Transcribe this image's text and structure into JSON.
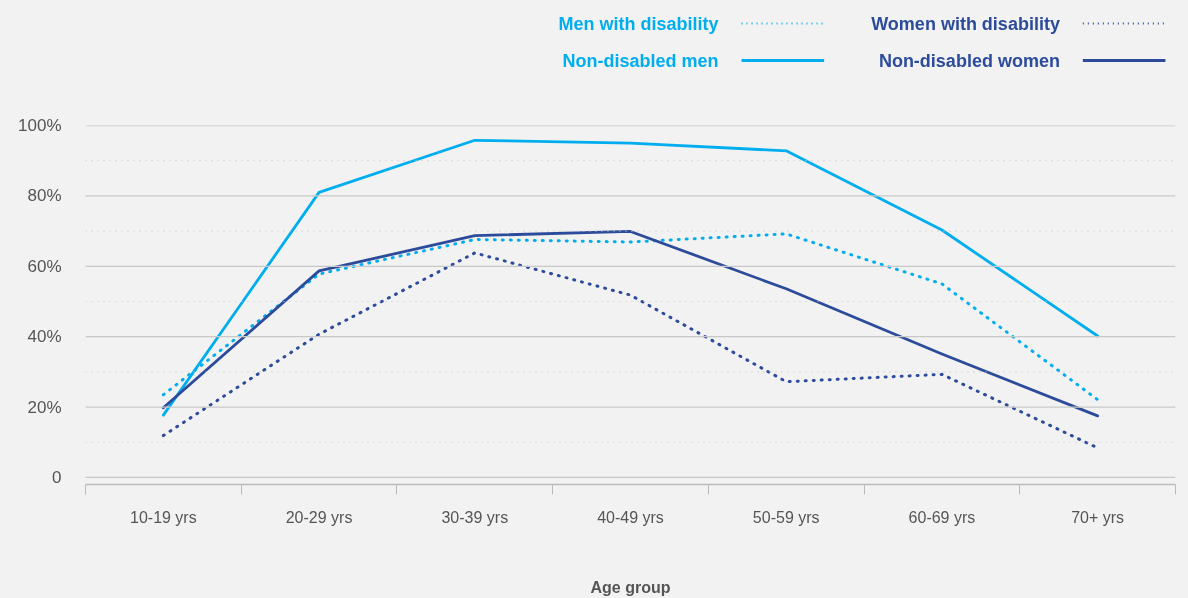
{
  "chart_data": {
    "type": "line",
    "xlabel": "Age group",
    "categories": [
      "10-19 yrs",
      "20-29 yrs",
      "30-39 yrs",
      "40-49 yrs",
      "50-59 yrs",
      "60-69 yrs",
      "70+ yrs"
    ],
    "ylim": [
      -2,
      100
    ],
    "yticks": [
      {
        "value": 0,
        "label": "0"
      },
      {
        "value": 10,
        "label": null
      },
      {
        "value": 20,
        "label": "20%"
      },
      {
        "value": 30,
        "label": null
      },
      {
        "value": 40,
        "label": "40%"
      },
      {
        "value": 50,
        "label": null
      },
      {
        "value": 60,
        "label": "60%"
      },
      {
        "value": 70,
        "label": null
      },
      {
        "value": 80,
        "label": "80%"
      },
      {
        "value": 90,
        "label": null
      },
      {
        "value": 100,
        "label": "100%"
      }
    ],
    "grid": "y",
    "legend": "top",
    "marker": "none",
    "series": [
      {
        "name": "Men with disability",
        "color": "#00aeef",
        "line_style": "dotted",
        "values": [
          23.5,
          57.8,
          67.6,
          66.9,
          69.2,
          55,
          22.1
        ]
      },
      {
        "name": "Women with disability",
        "color": "#2c4b9b",
        "line_style": "dotted",
        "values": [
          11.9,
          40.7,
          63.8,
          51.8,
          27.2,
          29.3,
          8.4
        ]
      },
      {
        "name": "Non-disabled men",
        "color": "#00aeef",
        "line_style": "solid",
        "values": [
          17.7,
          81,
          95.8,
          95,
          92.8,
          70.3,
          40.2
        ]
      },
      {
        "name": "Non-disabled women",
        "color": "#2c4b9b",
        "line_style": "solid",
        "values": [
          19.8,
          58.7,
          68.7,
          69.9,
          53.6,
          35.1,
          17.5
        ]
      }
    ]
  }
}
